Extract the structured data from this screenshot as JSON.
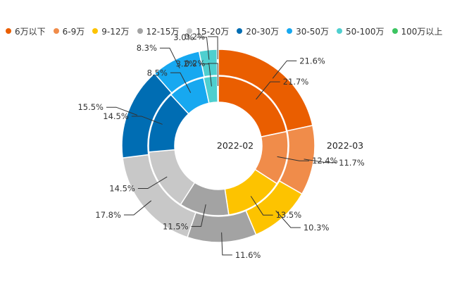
{
  "chart_data": {
    "type": "pie",
    "subtype": "nested-donut",
    "legend_position": "top-left",
    "categories": [
      "6万以下",
      "6-9万",
      "9-12万",
      "12-15万",
      "15-20万",
      "20-30万",
      "30-50万",
      "50-100万",
      "100万以上"
    ],
    "colors": [
      "#ea5e00",
      "#f08c4a",
      "#fdc300",
      "#a3a3a3",
      "#c8c8c8",
      "#006db3",
      "#17a8f0",
      "#4fcfcf",
      "#3cc461"
    ],
    "series": [
      {
        "name": "2022-02",
        "ring": "inner",
        "values": [
          21.7,
          12.4,
          13.5,
          11.5,
          14.5,
          14.5,
          8.5,
          3.2,
          0.2
        ],
        "labels": [
          "21.7%",
          "12.4%",
          "13.5%",
          "11.5%",
          "14.5%",
          "14.5%",
          "8.5%",
          "3.2%",
          "0.2%"
        ]
      },
      {
        "name": "2022-03",
        "ring": "outer",
        "values": [
          21.6,
          11.7,
          10.3,
          11.6,
          17.8,
          15.5,
          8.3,
          3.0,
          0.2
        ],
        "labels": [
          "21.6%",
          "11.7%",
          "10.3%",
          "11.6%",
          "17.8%",
          "15.5%",
          "8.3%",
          "3.0%",
          "0.2%"
        ]
      }
    ]
  }
}
